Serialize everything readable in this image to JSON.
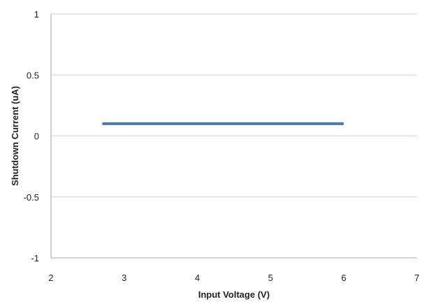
{
  "chart_data": {
    "type": "line",
    "title": "",
    "xlabel": "Input Voltage (V)",
    "ylabel": "Shutdown Current (uA)",
    "xlim": [
      2,
      7
    ],
    "ylim": [
      -1,
      1
    ],
    "xticks": [
      2,
      3,
      4,
      5,
      6,
      7
    ],
    "xtick_labels": [
      "2",
      "3",
      "4",
      "5",
      "6",
      "7"
    ],
    "yticks": [
      1,
      0.5,
      0,
      -0.5,
      -1
    ],
    "ytick_labels": [
      "1",
      "0.5",
      "0",
      "-0.5",
      "-1"
    ],
    "grid": "horizontal",
    "legend": "none",
    "series": [
      {
        "color": "#4a7ebb",
        "x": [
          2.7,
          6.0
        ],
        "y": [
          0.1,
          0.1
        ]
      }
    ]
  }
}
